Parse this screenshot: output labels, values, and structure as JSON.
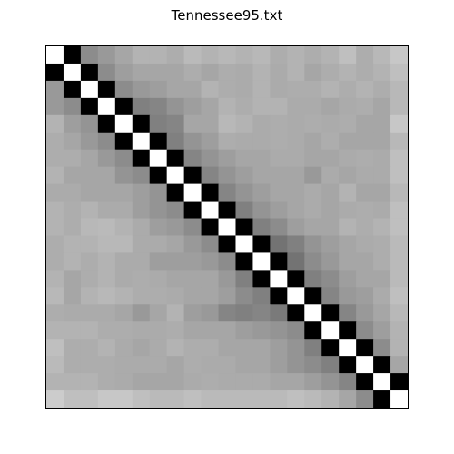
{
  "chart_data": {
    "type": "heatmap",
    "title": "Tennessee95.txt",
    "xlabel": "",
    "ylabel": "",
    "n": 21,
    "colormap": "grayscale",
    "grid": false,
    "legend": "none",
    "axes_ticks": false,
    "color_scale": {
      "min_color": "#ffffff",
      "max_color": "#000000"
    },
    "values": [
      [
        0,
        1,
        0.45,
        0.4,
        0.35,
        0.3,
        0.3,
        0.32,
        0.27,
        0.3,
        0.28,
        0.3,
        0.28,
        0.32,
        0.3,
        0.32,
        0.3,
        0.25,
        0.32,
        0.28,
        0.22
      ],
      [
        1,
        0,
        1,
        0.45,
        0.38,
        0.35,
        0.35,
        0.35,
        0.32,
        0.35,
        0.32,
        0.33,
        0.3,
        0.33,
        0.3,
        0.35,
        0.32,
        0.3,
        0.32,
        0.3,
        0.25
      ],
      [
        0.4,
        1,
        0,
        1,
        0.45,
        0.4,
        0.38,
        0.35,
        0.35,
        0.3,
        0.32,
        0.33,
        0.3,
        0.33,
        0.32,
        0.32,
        0.3,
        0.32,
        0.3,
        0.32,
        0.28
      ],
      [
        0.4,
        0.45,
        1,
        0,
        1,
        0.5,
        0.48,
        0.42,
        0.38,
        0.35,
        0.3,
        0.32,
        0.3,
        0.3,
        0.33,
        0.33,
        0.35,
        0.33,
        0.32,
        0.35,
        0.28
      ],
      [
        0.3,
        0.38,
        0.42,
        1,
        0,
        1,
        0.5,
        0.48,
        0.35,
        0.35,
        0.28,
        0.3,
        0.33,
        0.32,
        0.33,
        0.32,
        0.33,
        0.32,
        0.35,
        0.35,
        0.22
      ],
      [
        0.32,
        0.35,
        0.4,
        0.45,
        1,
        0,
        1,
        0.5,
        0.42,
        0.38,
        0.32,
        0.33,
        0.33,
        0.32,
        0.33,
        0.35,
        0.32,
        0.35,
        0.35,
        0.35,
        0.28
      ],
      [
        0.32,
        0.32,
        0.35,
        0.4,
        0.45,
        1,
        0,
        1,
        0.48,
        0.42,
        0.38,
        0.35,
        0.35,
        0.33,
        0.33,
        0.35,
        0.35,
        0.33,
        0.32,
        0.33,
        0.25
      ],
      [
        0.3,
        0.35,
        0.35,
        0.35,
        0.42,
        0.45,
        1,
        0,
        1,
        0.48,
        0.42,
        0.38,
        0.35,
        0.35,
        0.35,
        0.4,
        0.33,
        0.35,
        0.33,
        0.33,
        0.25
      ],
      [
        0.33,
        0.33,
        0.35,
        0.35,
        0.35,
        0.38,
        0.42,
        1,
        0,
        1,
        0.48,
        0.42,
        0.38,
        0.35,
        0.35,
        0.33,
        0.35,
        0.3,
        0.35,
        0.35,
        0.28
      ],
      [
        0.3,
        0.32,
        0.3,
        0.33,
        0.33,
        0.38,
        0.42,
        0.45,
        1,
        0,
        1,
        0.5,
        0.42,
        0.38,
        0.35,
        0.33,
        0.35,
        0.33,
        0.32,
        0.33,
        0.25
      ],
      [
        0.3,
        0.32,
        0.28,
        0.27,
        0.3,
        0.33,
        0.38,
        0.4,
        0.45,
        1,
        0,
        1,
        0.5,
        0.45,
        0.38,
        0.35,
        0.35,
        0.3,
        0.32,
        0.3,
        0.25
      ],
      [
        0.32,
        0.3,
        0.3,
        0.28,
        0.28,
        0.33,
        0.33,
        0.35,
        0.4,
        0.45,
        1,
        0,
        1,
        0.55,
        0.5,
        0.42,
        0.38,
        0.35,
        0.33,
        0.32,
        0.27
      ],
      [
        0.32,
        0.3,
        0.32,
        0.3,
        0.33,
        0.33,
        0.38,
        0.38,
        0.38,
        0.4,
        0.45,
        1,
        0,
        1,
        0.55,
        0.45,
        0.4,
        0.35,
        0.35,
        0.32,
        0.27
      ],
      [
        0.3,
        0.35,
        0.32,
        0.3,
        0.33,
        0.32,
        0.33,
        0.35,
        0.35,
        0.35,
        0.4,
        0.5,
        1,
        0,
        1,
        0.5,
        0.45,
        0.38,
        0.35,
        0.35,
        0.27
      ],
      [
        0.28,
        0.35,
        0.3,
        0.28,
        0.3,
        0.32,
        0.32,
        0.33,
        0.35,
        0.35,
        0.38,
        0.45,
        0.5,
        1,
        0,
        1,
        0.48,
        0.4,
        0.38,
        0.33,
        0.25
      ],
      [
        0.32,
        0.33,
        0.33,
        0.33,
        0.35,
        0.4,
        0.35,
        0.3,
        0.38,
        0.4,
        0.48,
        0.5,
        0.48,
        0.52,
        1,
        0,
        1,
        0.48,
        0.4,
        0.35,
        0.28
      ],
      [
        0.3,
        0.3,
        0.3,
        0.32,
        0.32,
        0.33,
        0.33,
        0.32,
        0.35,
        0.35,
        0.35,
        0.38,
        0.4,
        0.42,
        0.45,
        1,
        0,
        1,
        0.45,
        0.38,
        0.3
      ],
      [
        0.25,
        0.32,
        0.32,
        0.3,
        0.33,
        0.35,
        0.33,
        0.3,
        0.32,
        0.32,
        0.35,
        0.35,
        0.35,
        0.38,
        0.42,
        0.5,
        1,
        0,
        1,
        0.45,
        0.3
      ],
      [
        0.27,
        0.32,
        0.32,
        0.32,
        0.33,
        0.33,
        0.33,
        0.35,
        0.32,
        0.33,
        0.33,
        0.35,
        0.35,
        0.38,
        0.42,
        0.45,
        0.5,
        1,
        0,
        1,
        0.35
      ],
      [
        0.3,
        0.3,
        0.3,
        0.32,
        0.33,
        0.35,
        0.35,
        0.35,
        0.33,
        0.32,
        0.33,
        0.33,
        0.33,
        0.35,
        0.35,
        0.38,
        0.42,
        0.48,
        1,
        0,
        1
      ],
      [
        0.2,
        0.25,
        0.25,
        0.22,
        0.22,
        0.25,
        0.27,
        0.27,
        0.25,
        0.27,
        0.27,
        0.27,
        0.27,
        0.27,
        0.25,
        0.27,
        0.3,
        0.35,
        0.45,
        1,
        0
      ]
    ]
  }
}
